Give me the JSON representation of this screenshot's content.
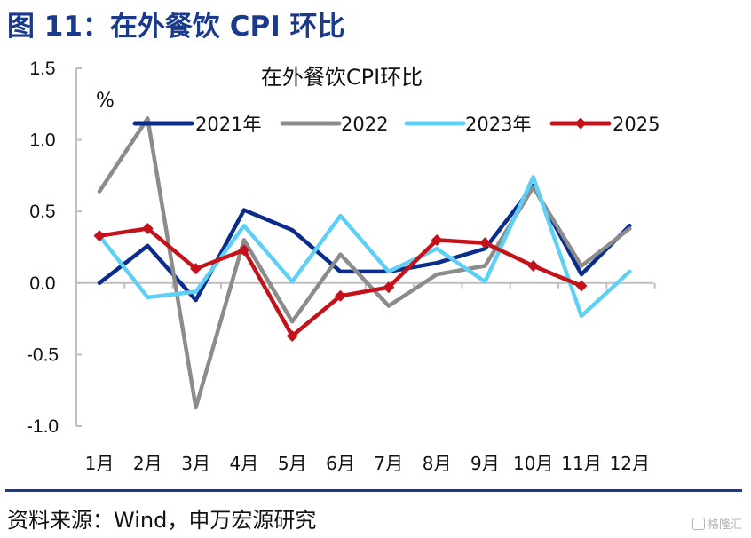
{
  "header": {
    "figure_title": "图 11：在外餐饮 CPI 环比"
  },
  "footer": {
    "source": "资料来源：Wind，申万宏源研究",
    "watermark": "格隆汇"
  },
  "chart_data": {
    "type": "line",
    "title": "在外餐饮CPI环比",
    "ylabel": "%",
    "xlabel": "",
    "ylim": [
      -1.0,
      1.5
    ],
    "yticks": [
      -1.0,
      -0.5,
      0.0,
      0.5,
      1.0,
      1.5
    ],
    "ytick_labels": [
      "-1.0",
      "-0.5",
      "0.0",
      "0.5",
      "1.0",
      "1.5"
    ],
    "categories": [
      "1月",
      "2月",
      "3月",
      "4月",
      "5月",
      "6月",
      "7月",
      "8月",
      "9月",
      "10月",
      "11月",
      "12月"
    ],
    "legend_position": "top",
    "grid": false,
    "series": [
      {
        "name": "2021年",
        "color": "#0a2d8c",
        "marker": "none",
        "values": [
          0.0,
          0.26,
          -0.12,
          0.51,
          0.37,
          0.08,
          0.08,
          0.14,
          0.24,
          0.68,
          0.06,
          0.4
        ]
      },
      {
        "name": "2022",
        "color": "#8c8c8c",
        "marker": "none",
        "values": [
          0.64,
          1.15,
          -0.87,
          0.3,
          -0.27,
          0.2,
          -0.16,
          0.06,
          0.12,
          0.67,
          0.12,
          0.38
        ]
      },
      {
        "name": "2023年",
        "color": "#5fd0f5",
        "marker": "none",
        "values": [
          0.33,
          -0.1,
          -0.06,
          0.4,
          0.01,
          0.47,
          0.08,
          0.24,
          0.01,
          0.74,
          -0.23,
          0.08
        ]
      },
      {
        "name": "2025",
        "color": "#c4121a",
        "marker": "diamond",
        "values": [
          0.33,
          0.38,
          0.1,
          0.23,
          -0.37,
          -0.09,
          -0.03,
          0.3,
          0.28,
          0.12,
          -0.02,
          null
        ]
      }
    ]
  }
}
